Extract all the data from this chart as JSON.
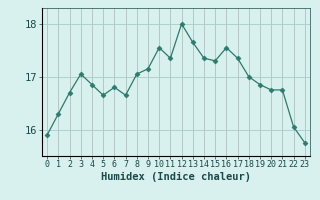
{
  "x": [
    0,
    1,
    2,
    3,
    4,
    5,
    6,
    7,
    8,
    9,
    10,
    11,
    12,
    13,
    14,
    15,
    16,
    17,
    18,
    19,
    20,
    21,
    22,
    23
  ],
  "y": [
    15.9,
    16.3,
    16.7,
    17.05,
    16.85,
    16.65,
    16.8,
    16.65,
    17.05,
    17.15,
    17.55,
    17.35,
    18.0,
    17.65,
    17.35,
    17.3,
    17.55,
    17.35,
    17.0,
    16.85,
    16.75,
    16.75,
    16.05,
    15.75
  ],
  "line_color": "#2d7a6e",
  "marker": "D",
  "marker_size": 2.5,
  "bg_color": "#d8f0ee",
  "grid_color": "#aacfcc",
  "xlabel": "Humidex (Indice chaleur)",
  "ylim": [
    15.5,
    18.3
  ],
  "xlim": [
    -0.5,
    23.5
  ],
  "yticks": [
    16,
    17,
    18
  ],
  "xticks": [
    0,
    1,
    2,
    3,
    4,
    5,
    6,
    7,
    8,
    9,
    10,
    11,
    12,
    13,
    14,
    15,
    16,
    17,
    18,
    19,
    20,
    21,
    22,
    23
  ],
  "tick_color": "#1a4a4a",
  "xlabel_fontsize": 7.5,
  "ytick_fontsize": 7.5,
  "xtick_fontsize": 6.0
}
